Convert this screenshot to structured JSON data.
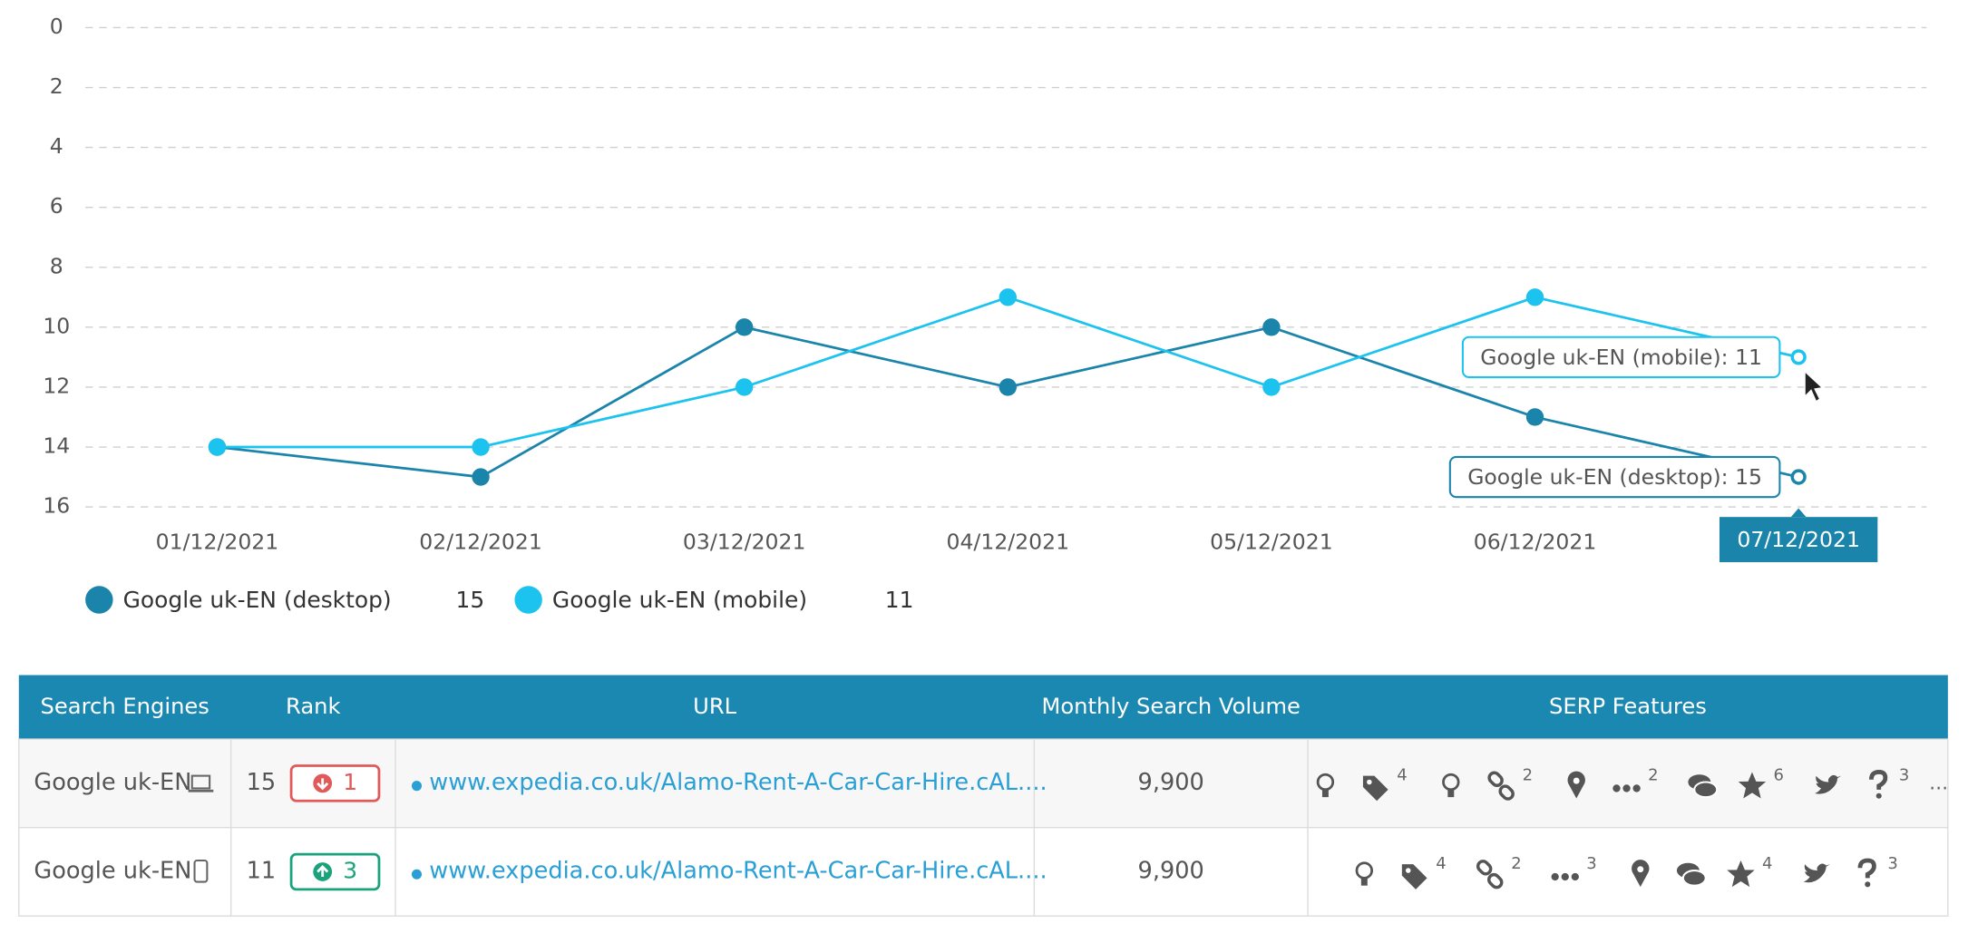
{
  "chart_data": {
    "type": "line",
    "categories": [
      "01/12/2021",
      "02/12/2021",
      "03/12/2021",
      "04/12/2021",
      "05/12/2021",
      "06/12/2021",
      "07/12/2021"
    ],
    "series": [
      {
        "name": "Google uk-EN (desktop)",
        "color": "#1b84ab",
        "values": [
          14,
          15,
          10,
          12,
          10,
          13,
          15
        ]
      },
      {
        "name": "Google uk-EN (mobile)",
        "color": "#1dc3ef",
        "values": [
          14,
          14,
          12,
          9,
          12,
          9,
          11
        ]
      }
    ],
    "ylim": [
      0,
      16
    ],
    "y_inverted": true,
    "yticks": [
      0,
      2,
      4,
      6,
      8,
      10,
      12,
      14,
      16
    ],
    "grid": true,
    "hover_index": 6,
    "tooltips": [
      "Google uk-EN (desktop): 15",
      "Google uk-EN (mobile): 11"
    ]
  },
  "table": {
    "headers": [
      "Search Engines",
      "Rank",
      "URL",
      "Monthly Search Volume",
      "SERP Features"
    ],
    "rows": [
      {
        "engine": "Google uk-EN",
        "device": "desktop",
        "rank": 15,
        "change": 1,
        "direction": "down",
        "url": "www.expedia.co.uk/Alamo-Rent-A-Car-Car-Hire.cAL....",
        "volume": "9,900",
        "features": [
          {
            "icon": "bulb"
          },
          {
            "icon": "tag",
            "count": 4
          },
          {
            "icon": "bulb"
          },
          {
            "icon": "link",
            "count": 2
          },
          {
            "icon": "pin"
          },
          {
            "icon": "more",
            "count": 2
          },
          {
            "icon": "chat"
          },
          {
            "icon": "star",
            "count": 6
          },
          {
            "icon": "twitter"
          },
          {
            "icon": "question",
            "count": 3
          }
        ],
        "overflow": "..."
      },
      {
        "engine": "Google uk-EN",
        "device": "mobile",
        "rank": 11,
        "change": 3,
        "direction": "up",
        "url": "www.expedia.co.uk/Alamo-Rent-A-Car-Car-Hire.cAL....",
        "volume": "9,900",
        "features": [
          {
            "icon": "bulb"
          },
          {
            "icon": "tag",
            "count": 4
          },
          {
            "icon": "link",
            "count": 2
          },
          {
            "icon": "more",
            "count": 3
          },
          {
            "icon": "pin"
          },
          {
            "icon": "chat"
          },
          {
            "icon": "star",
            "count": 4
          },
          {
            "icon": "twitter"
          },
          {
            "icon": "question",
            "count": 3
          }
        ]
      }
    ]
  }
}
